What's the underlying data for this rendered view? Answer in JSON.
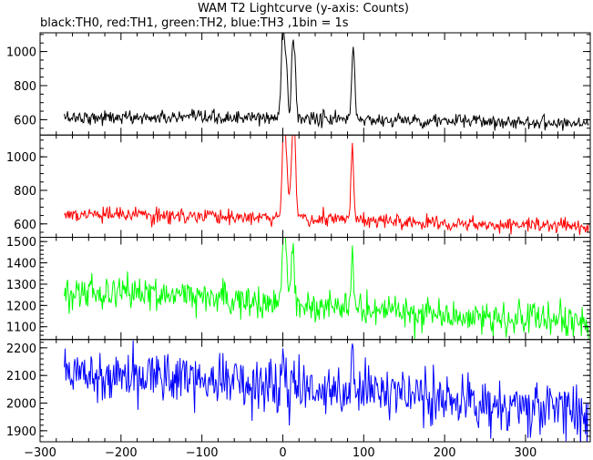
{
  "chart_data": {
    "type": "line",
    "title": "WAM T2 Lightcurve (y-axis: Counts)",
    "subtitle": "black:TH0, red:TH1, green:TH2, blue:TH3 ,1bin = 1s",
    "xlim": [
      -300,
      380
    ],
    "x_start": -270,
    "x_end": 378,
    "bin_size": 1,
    "x_ticks": [
      -300,
      -200,
      -100,
      0,
      100,
      200,
      300
    ],
    "grid": false,
    "panels": [
      {
        "channel": "TH0",
        "color": "#000000",
        "ylim": [
          510,
          1110
        ],
        "y_ticks": [
          600,
          800,
          1000
        ],
        "baseline": [
          [
            -270,
            615
          ],
          [
            -100,
            610
          ],
          [
            0,
            610
          ],
          [
            100,
            600
          ],
          [
            378,
            580
          ]
        ],
        "noise": 20,
        "peaks": [
          [
            0,
            1100,
            2
          ],
          [
            4,
            900,
            2
          ],
          [
            12,
            1000,
            1.5
          ],
          [
            15,
            930,
            1.5
          ],
          [
            87,
            1010,
            2
          ]
        ]
      },
      {
        "channel": "TH1",
        "color": "#ff0000",
        "ylim": [
          520,
          1130
        ],
        "y_ticks": [
          600,
          800,
          1000
        ],
        "baseline": [
          [
            -270,
            655
          ],
          [
            -100,
            645
          ],
          [
            0,
            640
          ],
          [
            100,
            620
          ],
          [
            378,
            585
          ]
        ],
        "noise": 22,
        "peaks": [
          [
            1,
            1120,
            2
          ],
          [
            4,
            940,
            2
          ],
          [
            12,
            1100,
            2
          ],
          [
            15,
            980,
            1.5
          ],
          [
            86,
            1070,
            1.5
          ]
        ]
      },
      {
        "channel": "TH2",
        "color": "#00ff00",
        "ylim": [
          1040,
          1520
        ],
        "y_ticks": [
          1100,
          1200,
          1300,
          1400,
          1500
        ],
        "baseline": [
          [
            -270,
            1270
          ],
          [
            -200,
            1260
          ],
          [
            -100,
            1240
          ],
          [
            0,
            1215
          ],
          [
            100,
            1180
          ],
          [
            250,
            1145
          ],
          [
            378,
            1115
          ]
        ],
        "noise": 38,
        "peaks": [
          [
            1,
            1480,
            2
          ],
          [
            4,
            1380,
            2
          ],
          [
            12,
            1440,
            2
          ],
          [
            86,
            1470,
            1.5
          ]
        ]
      },
      {
        "channel": "TH3",
        "color": "#0000ff",
        "ylim": [
          1860,
          2230
        ],
        "y_ticks": [
          1900,
          2000,
          2100,
          2200
        ],
        "baseline": [
          [
            -270,
            2115
          ],
          [
            -150,
            2100
          ],
          [
            -50,
            2080
          ],
          [
            50,
            2050
          ],
          [
            150,
            2030
          ],
          [
            250,
            2000
          ],
          [
            378,
            1960
          ]
        ],
        "noise": 48,
        "peaks": [
          [
            1,
            2190,
            2
          ],
          [
            12,
            2130,
            2
          ],
          [
            86,
            2170,
            1.5
          ]
        ]
      }
    ]
  }
}
